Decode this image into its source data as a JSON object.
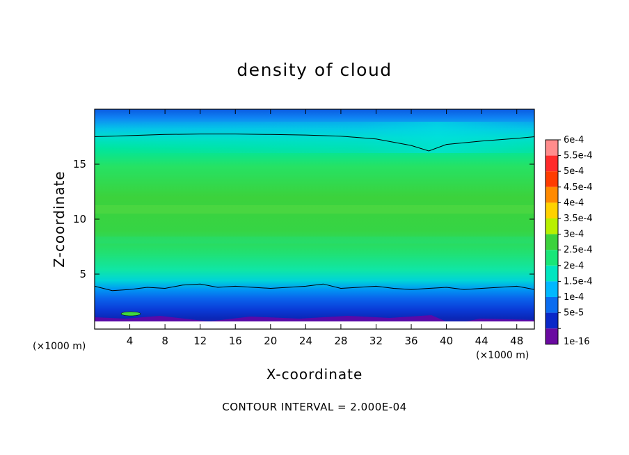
{
  "chart_data": {
    "type": "heatmap",
    "title": "density of cloud",
    "xlabel": "X-coordinate",
    "ylabel": "Z-coordinate",
    "x_unit": "(×1000 m)",
    "footer": "CONTOUR INTERVAL = 2.000E-04",
    "xlim": [
      0,
      50
    ],
    "ylim": [
      0,
      20
    ],
    "x_ticks": [
      4,
      8,
      12,
      16,
      20,
      24,
      28,
      32,
      36,
      40,
      44,
      48
    ],
    "y_ticks": [
      5,
      10,
      15
    ],
    "colorbar": {
      "labels": [
        "6e-4",
        "5.5e-4",
        "5e-4",
        "4.5e-4",
        "4e-4",
        "3.5e-4",
        "3e-4",
        "2.5e-4",
        "2e-4",
        "1.5e-4",
        "1e-4",
        "5e-5",
        "1e-16"
      ],
      "colors": [
        "#ff8c8c",
        "#ff2a2a",
        "#ff3c00",
        "#ff8a00",
        "#ffd200",
        "#b8f000",
        "#3cd23c",
        "#19e678",
        "#00e6c0",
        "#00b8ff",
        "#0a6cf0",
        "#0a28c8",
        "#6a0aa0"
      ]
    },
    "contour_levels": [
      0.0002
    ],
    "contour_line_upper": {
      "x": [
        0,
        4,
        8,
        12,
        16,
        20,
        24,
        28,
        32,
        36,
        38,
        40,
        44,
        48,
        50
      ],
      "z": [
        17.5,
        17.6,
        17.7,
        17.75,
        17.75,
        17.7,
        17.65,
        17.55,
        17.3,
        16.7,
        16.2,
        16.8,
        17.1,
        17.35,
        17.5
      ]
    },
    "contour_line_lower": {
      "x": [
        0,
        2,
        4,
        6,
        8,
        10,
        12,
        14,
        16,
        18,
        20,
        22,
        24,
        26,
        28,
        30,
        32,
        34,
        36,
        38,
        40,
        42,
        44,
        46,
        48,
        50
      ],
      "z": [
        3.9,
        3.5,
        3.6,
        3.8,
        3.7,
        4.0,
        4.1,
        3.8,
        3.9,
        3.8,
        3.7,
        3.8,
        3.9,
        4.1,
        3.7,
        3.8,
        3.9,
        3.7,
        3.6,
        3.7,
        3.8,
        3.6,
        3.7,
        3.8,
        3.9,
        3.6
      ]
    },
    "colorbar_position": "right"
  }
}
